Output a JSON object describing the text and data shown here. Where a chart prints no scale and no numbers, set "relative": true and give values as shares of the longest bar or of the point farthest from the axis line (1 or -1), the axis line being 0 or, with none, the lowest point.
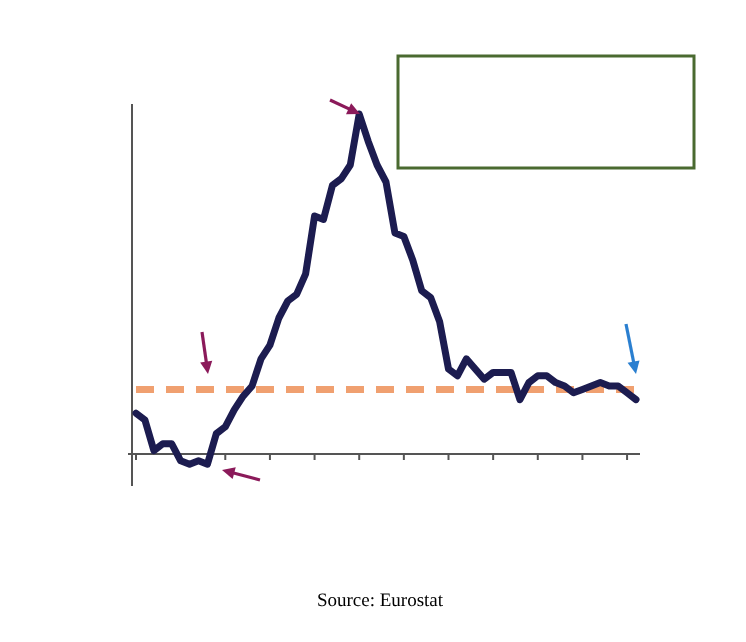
{
  "chart_data": {
    "type": "line",
    "relative": true,
    "line_style": "solid",
    "categories": [
      null,
      null,
      null,
      null,
      null,
      null,
      null,
      null,
      null,
      null,
      null,
      null,
      null,
      null,
      null,
      null,
      null,
      null,
      null,
      null,
      null,
      null,
      null,
      null,
      null,
      null,
      null,
      null,
      null,
      null,
      null,
      null,
      null,
      null,
      null,
      null,
      null,
      null,
      null,
      null,
      null,
      null,
      null,
      null,
      null,
      null,
      null,
      null,
      null,
      null,
      null,
      null,
      null,
      null,
      null,
      null,
      null
    ],
    "series": [
      {
        "color": "#1c1c50",
        "values": [
          0.12,
          0.1,
          0.01,
          0.03,
          0.03,
          -0.02,
          -0.03,
          -0.02,
          -0.03,
          0.06,
          0.08,
          0.13,
          0.17,
          0.2,
          0.28,
          0.32,
          0.4,
          0.45,
          0.47,
          0.53,
          0.7,
          0.69,
          0.79,
          0.81,
          0.85,
          1,
          0.92,
          0.85,
          0.8,
          0.65,
          0.64,
          0.57,
          0.48,
          0.46,
          0.39,
          0.25,
          0.23,
          0.28,
          0.25,
          0.22,
          0.24,
          0.24,
          0.24,
          0.16,
          0.21,
          0.23,
          0.23,
          0.21,
          0.2,
          0.18,
          0.19,
          0.2,
          0.21,
          0.2,
          0.2,
          0.18,
          0.16
        ]
      }
    ],
    "ref_lines": [
      {
        "axis": "y",
        "value": 0.19,
        "color": "#f0a070",
        "line_style": "dashed"
      }
    ],
    "annotations": [
      "Source: Eurostat"
    ]
  }
}
